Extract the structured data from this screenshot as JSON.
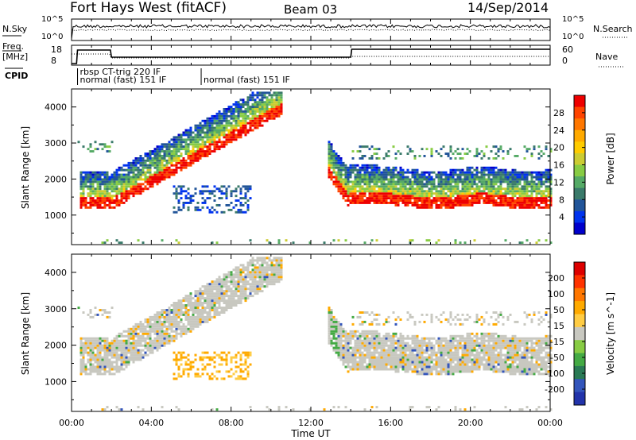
{
  "header": {
    "station": "Fort Hays West (fitACF)",
    "beam": "Beam 03",
    "date": "14/Sep/2014"
  },
  "top_panels": {
    "nsky_label": "N.Sky",
    "nsearch_label": "N.Search",
    "nsky_ticks": [
      "10^5",
      "10^0"
    ],
    "nsearch_ticks": [
      "10^5",
      "10^0"
    ],
    "freq_label_1": "Freq.",
    "freq_label_2": "[MHz]",
    "freq_ticks": [
      "18",
      "8"
    ],
    "nave_label": "Nave",
    "nave_ticks": [
      "60",
      "0"
    ],
    "cpid_label": "CPID",
    "cpid_segments": [
      {
        "label": "rbsp CT-trig 220 IF",
        "start_hour": 0.3,
        "end_hour": 2.0
      },
      {
        "label": "normal (fast) 151 IF",
        "start_hour": 0.3,
        "end_hour": 6.5
      },
      {
        "label": "normal (fast) 151 IF",
        "start_hour": 6.5,
        "end_hour": 24.0
      }
    ]
  },
  "chart_data": [
    {
      "type": "heatmap",
      "title": "",
      "xlabel": "",
      "ylabel": "Slant Range [km]",
      "xlim": [
        0,
        24
      ],
      "ylim": [
        180,
        4500
      ],
      "yticks": [
        "1000",
        "2000",
        "3000",
        "4000"
      ],
      "colorbar": {
        "label": "Power [dB]",
        "ticks": [
          "28",
          "24",
          "20",
          "16",
          "12",
          "8",
          "4"
        ],
        "colors": [
          "#0000cc",
          "#0033ee",
          "#225599",
          "#3a7a6a",
          "#55aa66",
          "#88cc44",
          "#cccc33",
          "#ffcc00",
          "#ffaa00",
          "#ff7700",
          "#ff4400",
          "#ee0000"
        ]
      }
    },
    {
      "type": "heatmap",
      "title": "",
      "xlabel": "Time UT",
      "ylabel": "Slant Range [km]",
      "xlim": [
        0,
        24
      ],
      "ylim": [
        180,
        4500
      ],
      "yticks": [
        "1000",
        "2000",
        "3000",
        "4000"
      ],
      "xticks": [
        "00:00",
        "04:00",
        "08:00",
        "12:00",
        "16:00",
        "20:00",
        "00:00"
      ],
      "colorbar": {
        "label": "Velocity [m s^-1]",
        "ticks": [
          "200",
          "100",
          "50",
          "15",
          "-15",
          "-50",
          "-100",
          "-200"
        ],
        "colors": [
          "#2233aa",
          "#3355bb",
          "#2a7a55",
          "#44aa44",
          "#88cc44",
          "#c8c8c0",
          "#ffcc44",
          "#ffaa00",
          "#ff7700",
          "#ff3300",
          "#dd0000"
        ]
      }
    }
  ]
}
